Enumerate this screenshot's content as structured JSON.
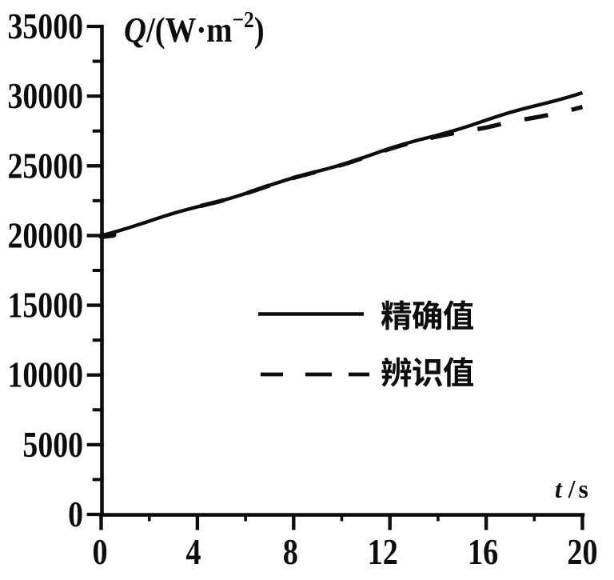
{
  "figure": {
    "kind": "scanned line chart",
    "background": "#ffffff",
    "ink_color": "#0d0d0d"
  },
  "chart_data": {
    "type": "line",
    "title": "",
    "xlabel": "t/s",
    "ylabel": "Q/(W·m⁻²)",
    "x_axis": {
      "label": "t/s",
      "label_parts": {
        "var": "t",
        "rest": "/s"
      },
      "range": [
        0,
        20
      ],
      "major_ticks": [
        0,
        4,
        8,
        12,
        16,
        20
      ],
      "tick_labels": [
        "0",
        "4",
        "8",
        "12",
        "16",
        "20"
      ],
      "minor_tick_step": 2
    },
    "y_axis": {
      "label": "Q/(W·m⁻²)",
      "label_parts": {
        "var": "Q",
        "mid": "/(W·m",
        "sup": "−2",
        "close": ")"
      },
      "range": [
        0,
        35000
      ],
      "major_ticks": [
        0,
        5000,
        10000,
        15000,
        20000,
        25000,
        30000,
        35000
      ],
      "tick_labels": [
        "0",
        "5000",
        "10000",
        "15000",
        "20000",
        "25000",
        "30000",
        "35000"
      ],
      "minor_tick_step": 2500
    },
    "grid": false,
    "legend": {
      "position": "inside center-right",
      "entries": [
        {
          "label": "精确值",
          "line_style": "solid"
        },
        {
          "label": "辨识值",
          "line_style": "dashed"
        }
      ]
    },
    "series": [
      {
        "name": "精确值",
        "line_style": "solid",
        "x": [
          0,
          2,
          4,
          6,
          8,
          10,
          12,
          14,
          16,
          18,
          20
        ],
        "y": [
          20000,
          21030,
          22060,
          23090,
          24120,
          25150,
          26180,
          27210,
          28240,
          29270,
          30300
        ]
      },
      {
        "name": "辨识值",
        "line_style": "dashed",
        "x": [
          4,
          6,
          8,
          10,
          12,
          14,
          15,
          16,
          18,
          20
        ],
        "y": [
          22060,
          23085,
          24110,
          25130,
          26150,
          27130,
          27480,
          27700,
          28430,
          29280
        ]
      }
    ]
  }
}
